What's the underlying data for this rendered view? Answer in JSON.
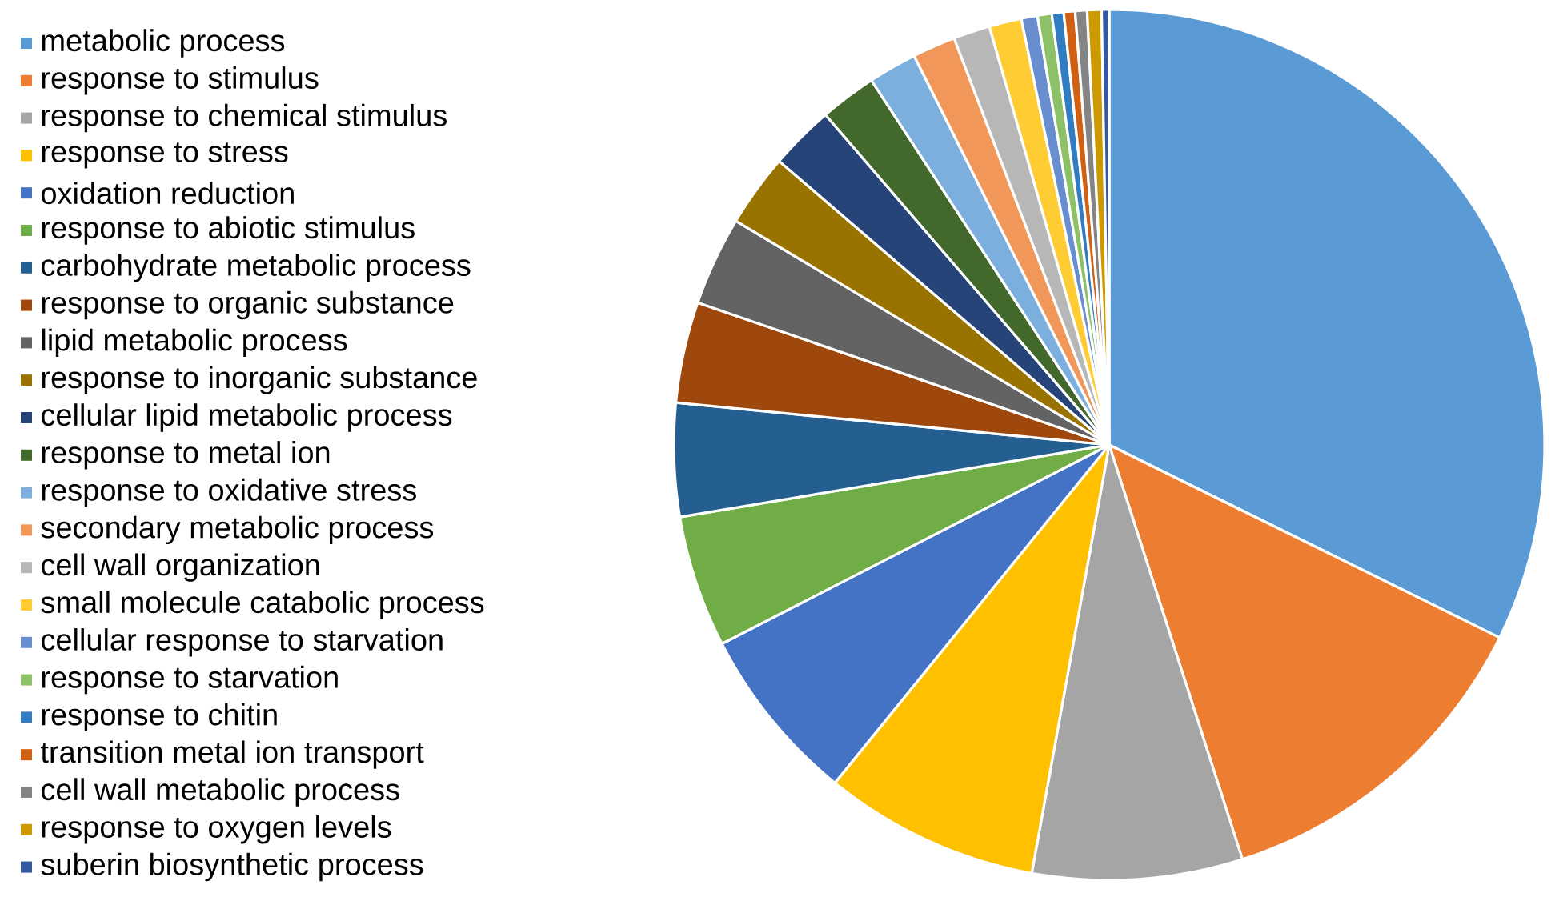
{
  "chart_data": {
    "type": "pie",
    "legend": "left",
    "categories": [
      "metabolic process",
      "response to stimulus",
      "response to chemical stimulus",
      "response to stress",
      "oxidation reduction",
      "response to abiotic stimulus",
      "carbohydrate metabolic process",
      "response to organic substance",
      "lipid metabolic process",
      "response to inorganic substance",
      "cellular lipid metabolic process",
      "response to metal ion",
      "response to oxidative stress",
      "secondary metabolic process",
      "cell wall organization",
      "small molecule catabolic process",
      "cellular response to starvation",
      "response to starvation",
      "response to chitin",
      "transition metal ion transport",
      "cell wall metabolic process",
      "response to oxygen levels",
      "suberin biosynthetic process"
    ],
    "values": [
      32.3,
      12.75,
      7.8,
      8.0,
      6.6,
      4.9,
      4.2,
      3.75,
      3.3,
      2.7,
      2.4,
      2.1,
      1.8,
      1.6,
      1.36,
      1.2,
      0.6,
      0.53,
      0.44,
      0.42,
      0.44,
      0.53,
      0.28
    ],
    "colors": [
      "#5b9bd5",
      "#ed7d31",
      "#a5a5a5",
      "#ffc000",
      "#4472c4",
      "#70ad47",
      "#255e91",
      "#9e480e",
      "#636363",
      "#997300",
      "#264478",
      "#43682b",
      "#7cafdd",
      "#f1975a",
      "#b7b7b7",
      "#ffcd33",
      "#698ed0",
      "#8cc168",
      "#327dc2",
      "#d26012",
      "#848484",
      "#cc9a00",
      "#335aa1"
    ]
  }
}
